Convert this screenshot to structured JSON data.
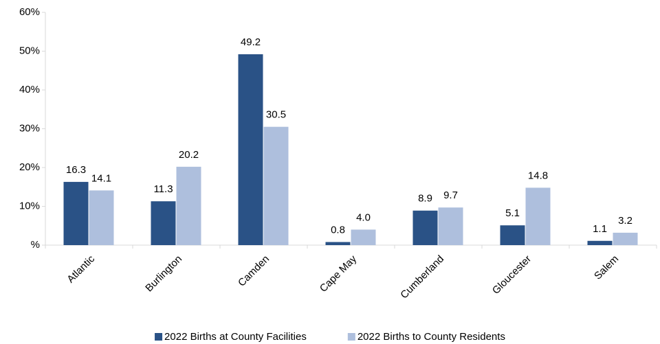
{
  "chart_data": {
    "type": "bar",
    "categories": [
      "Atlantic",
      "Burlington",
      "Camden",
      "Cape May",
      "Cumberland",
      "Gloucester",
      "Salem"
    ],
    "series": [
      {
        "name": "2022 Births at County Facilities",
        "color": "#2a5286",
        "values": [
          16.3,
          11.3,
          49.2,
          0.8,
          8.9,
          5.1,
          1.1
        ]
      },
      {
        "name": "2022 Births to County Residents",
        "color": "#aebfdd",
        "values": [
          14.1,
          20.2,
          30.5,
          4.0,
          9.7,
          14.8,
          3.2
        ],
        "value_labels": [
          "14.1",
          "20.2",
          "30.5",
          "4.0",
          "9.7",
          "14.8",
          "3.2"
        ]
      }
    ],
    "ylim": [
      0,
      60
    ],
    "yticks": [
      {
        "value": 0,
        "label": "%"
      },
      {
        "value": 10,
        "label": "10%"
      },
      {
        "value": 20,
        "label": "20%"
      },
      {
        "value": 30,
        "label": "30%"
      },
      {
        "value": 40,
        "label": "40%"
      },
      {
        "value": 50,
        "label": "50%"
      },
      {
        "value": 60,
        "label": "60%"
      }
    ],
    "grid": false,
    "legend": "bottom"
  }
}
